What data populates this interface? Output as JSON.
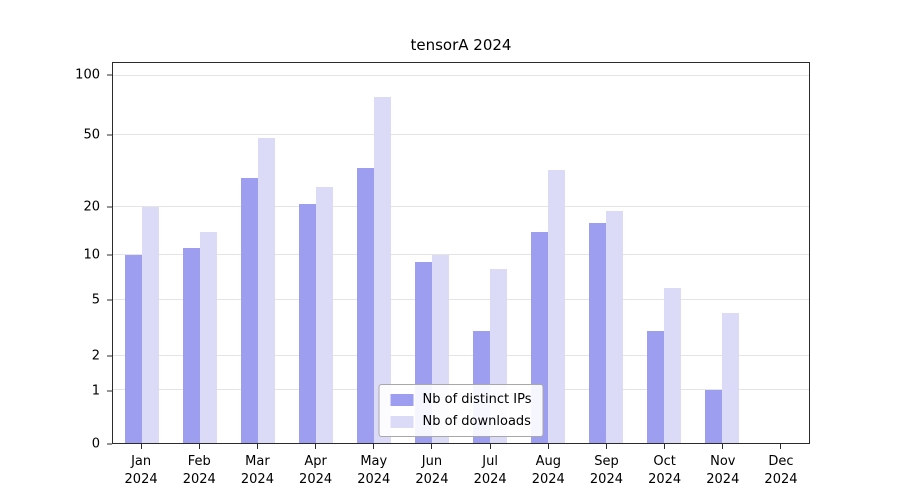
{
  "title": "tensorA 2024",
  "colors": {
    "series": [
      "#9e9ef0",
      "#dbdbf8"
    ],
    "grid": "#e4e4e4",
    "axis": "#2b2b2b",
    "text": "#000000",
    "background": "#ffffff"
  },
  "legend": {
    "items": [
      {
        "label": "Nb of distinct IPs"
      },
      {
        "label": "Nb of downloads"
      }
    ]
  },
  "chart_data": {
    "type": "bar",
    "title": "tensorA 2024",
    "xlabel": "",
    "ylabel": "",
    "categories": [
      "Jan 2024",
      "Feb 2024",
      "Mar 2024",
      "Apr 2024",
      "May 2024",
      "Jun 2024",
      "Jul 2024",
      "Aug 2024",
      "Sep 2024",
      "Oct 2024",
      "Nov 2024",
      "Dec 2024"
    ],
    "series": [
      {
        "name": "Nb of distinct IPs",
        "values": [
          10,
          11,
          29,
          21,
          33,
          9,
          3,
          14,
          16,
          3,
          1,
          0
        ]
      },
      {
        "name": "Nb of downloads",
        "values": [
          20,
          14,
          48,
          26,
          78,
          10,
          8,
          32,
          19,
          6,
          4,
          0
        ]
      }
    ],
    "yticks": [
      0,
      1,
      2,
      5,
      10,
      20,
      50,
      100
    ],
    "yscale": "log-like (0, 1, 2, 5, 10, 20, 50, 100)",
    "ylim": [
      0,
      110
    ],
    "grid": true,
    "legend_position": "lower center inside plot"
  }
}
